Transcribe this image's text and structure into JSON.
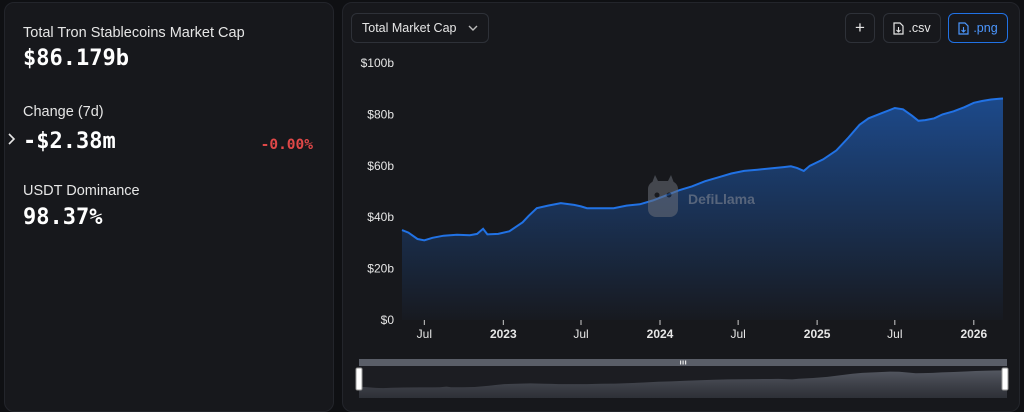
{
  "stats": {
    "market_cap_label": "Total Tron Stablecoins Market Cap",
    "market_cap_value": "$86.179b",
    "change_label": "Change (7d)",
    "change_value": "-$2.38m",
    "change_pct": "-0.00%",
    "dominance_label": "USDT Dominance",
    "dominance_value": "98.37%"
  },
  "toolbar": {
    "metric_select": "Total Market Cap",
    "add_label": "+",
    "csv_label": ".csv",
    "png_label": ".png"
  },
  "watermark": "DefiLlama",
  "colors": {
    "line": "#2172e5",
    "negative": "#e04848",
    "panel": "#17181c",
    "background": "#0f1013"
  },
  "chart_data": {
    "type": "area",
    "title": "",
    "xlabel": "",
    "ylabel": "",
    "ylim": [
      0,
      100
    ],
    "xlim": [
      "2022-05-10",
      "2026-03-10"
    ],
    "y_unit": "billions USD",
    "y_ticks": [
      "$0",
      "$20b",
      "$40b",
      "$60b",
      "$80b",
      "$100b"
    ],
    "x_ticks": [
      {
        "date": "2022-07-01",
        "label": "Jul",
        "bold": false
      },
      {
        "date": "2023-01-01",
        "label": "2023",
        "bold": true
      },
      {
        "date": "2023-07-01",
        "label": "Jul",
        "bold": false
      },
      {
        "date": "2024-01-01",
        "label": "2024",
        "bold": true
      },
      {
        "date": "2024-07-01",
        "label": "Jul",
        "bold": false
      },
      {
        "date": "2025-01-01",
        "label": "2025",
        "bold": true
      },
      {
        "date": "2025-07-01",
        "label": "Jul",
        "bold": false
      },
      {
        "date": "2026-01-01",
        "label": "2026",
        "bold": true
      }
    ],
    "grid": false,
    "legend": "none",
    "series": [
      {
        "points": [
          [
            "2022-05-10",
            35.0
          ],
          [
            "2022-05-25",
            34.0
          ],
          [
            "2022-06-15",
            31.5
          ],
          [
            "2022-07-01",
            31.0
          ],
          [
            "2022-07-20",
            32.0
          ],
          [
            "2022-08-15",
            32.8
          ],
          [
            "2022-09-15",
            33.2
          ],
          [
            "2022-10-15",
            33.0
          ],
          [
            "2022-11-01",
            33.5
          ],
          [
            "2022-11-15",
            35.5
          ],
          [
            "2022-11-25",
            33.3
          ],
          [
            "2022-12-20",
            33.5
          ],
          [
            "2023-01-15",
            34.5
          ],
          [
            "2023-02-15",
            38.0
          ],
          [
            "2023-03-01",
            40.5
          ],
          [
            "2023-03-20",
            43.5
          ],
          [
            "2023-04-15",
            44.5
          ],
          [
            "2023-05-15",
            45.5
          ],
          [
            "2023-06-15",
            44.8
          ],
          [
            "2023-07-01",
            44.2
          ],
          [
            "2023-07-15",
            43.5
          ],
          [
            "2023-08-15",
            43.5
          ],
          [
            "2023-09-15",
            43.5
          ],
          [
            "2023-10-15",
            44.5
          ],
          [
            "2023-11-15",
            45.0
          ],
          [
            "2023-12-15",
            46.5
          ],
          [
            "2024-01-15",
            48.5
          ],
          [
            "2024-02-15",
            50.5
          ],
          [
            "2024-03-15",
            52.0
          ],
          [
            "2024-04-15",
            54.0
          ],
          [
            "2024-05-15",
            55.5
          ],
          [
            "2024-06-15",
            57.0
          ],
          [
            "2024-07-15",
            58.0
          ],
          [
            "2024-08-15",
            58.5
          ],
          [
            "2024-09-15",
            59.0
          ],
          [
            "2024-10-15",
            59.5
          ],
          [
            "2024-11-01",
            59.8
          ],
          [
            "2024-11-15",
            59.2
          ],
          [
            "2024-12-01",
            58.0
          ],
          [
            "2024-12-15",
            60.0
          ],
          [
            "2025-01-15",
            62.5
          ],
          [
            "2025-02-15",
            66.0
          ],
          [
            "2025-03-15",
            71.0
          ],
          [
            "2025-04-10",
            76.0
          ],
          [
            "2025-05-01",
            78.5
          ],
          [
            "2025-06-01",
            80.5
          ],
          [
            "2025-07-01",
            82.5
          ],
          [
            "2025-07-20",
            82.0
          ],
          [
            "2025-08-10",
            79.5
          ],
          [
            "2025-08-25",
            77.5
          ],
          [
            "2025-09-10",
            77.8
          ],
          [
            "2025-10-01",
            78.5
          ],
          [
            "2025-10-20",
            80.0
          ],
          [
            "2025-11-15",
            81.2
          ],
          [
            "2025-12-10",
            82.8
          ],
          [
            "2026-01-01",
            84.5
          ],
          [
            "2026-01-20",
            85.2
          ],
          [
            "2026-02-10",
            85.8
          ],
          [
            "2026-03-01",
            86.1
          ],
          [
            "2026-03-10",
            86.18
          ]
        ]
      }
    ]
  }
}
